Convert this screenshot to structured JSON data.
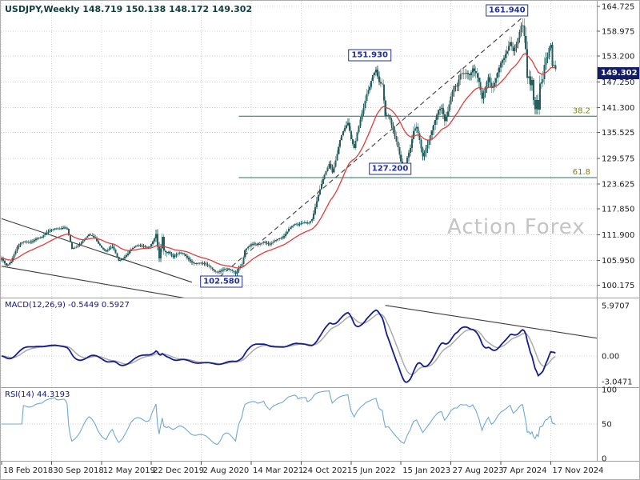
{
  "window": {
    "title_quote": "USDJPY,Weekly 148.719 150.138 148.172 149.302"
  },
  "watermark": "Action Forex",
  "colors": {
    "candle": "#265f5f",
    "ma": "#e03c3c",
    "macd_main": "#141e8c",
    "macd_signal": "#ababab",
    "rsi": "#6fa8d6",
    "grid": "#d4d4d4",
    "separator": "#9e9e9e",
    "axis_text": "#1c1c1c",
    "trendline": "#3c3c3c",
    "fib": "#2f6f63",
    "fib_label": "#808000",
    "callout": "#1e2f9e",
    "tag_bg": "#141c63",
    "title_text": "#0f3e3e",
    "watermark_text": "#c4c4c4"
  },
  "chart_data": {
    "type": "candlestick",
    "symbol": "USDJPY",
    "timeframe": "Weekly",
    "ohlc_current": {
      "open": 148.719,
      "high": 150.138,
      "low": 148.172,
      "close": 149.302
    },
    "main": {
      "price_axis_labels": [
        "164.725",
        "158.975",
        "153.200",
        "147.250",
        "141.300",
        "135.525",
        "129.575",
        "123.625",
        "117.850",
        "111.900",
        "105.950",
        "100.175"
      ],
      "ylim": [
        97.35,
        166.0
      ],
      "current_price": 149.302,
      "current_price_label": "149.302",
      "ma_indicator": {
        "type": "EMA",
        "period": 26
      },
      "price_path": [
        [
          0,
          106.3
        ],
        [
          3,
          105.2
        ],
        [
          6,
          106.1
        ],
        [
          10,
          108.6
        ],
        [
          14,
          110.0
        ],
        [
          18,
          110.6
        ],
        [
          22,
          111.2
        ],
        [
          26,
          110.8
        ],
        [
          31,
          113.0
        ],
        [
          34,
          113.9
        ],
        [
          38,
          113.3
        ],
        [
          42,
          112.7
        ],
        [
          45,
          108.6
        ],
        [
          48,
          109.6
        ],
        [
          52,
          110.5
        ],
        [
          56,
          111.4
        ],
        [
          60,
          111.0
        ],
        [
          63,
          109.9
        ],
        [
          67,
          108.1
        ],
        [
          71,
          108.6
        ],
        [
          75,
          105.9
        ],
        [
          79,
          107.3
        ],
        [
          83,
          108.4
        ],
        [
          87,
          108.9
        ],
        [
          91,
          109.4
        ],
        [
          95,
          109.6
        ],
        [
          99,
          111.3
        ],
        [
          100,
          108.1
        ],
        [
          101,
          105.4
        ],
        [
          102,
          107.8
        ],
        [
          103,
          110.7
        ],
        [
          104,
          107.9
        ],
        [
          107,
          108.4
        ],
        [
          110,
          107.2
        ],
        [
          114,
          107.4
        ],
        [
          118,
          106.7
        ],
        [
          122,
          105.9
        ],
        [
          126,
          105.5
        ],
        [
          130,
          104.7
        ],
        [
          134,
          104.2
        ],
        [
          138,
          103.7
        ],
        [
          142,
          103.8
        ],
        [
          146,
          103.4
        ],
        [
          150,
          103.1
        ],
        [
          152,
          104.7
        ],
        [
          154,
          105.6
        ],
        [
          156,
          108.5
        ],
        [
          158,
          108.8
        ],
        [
          160,
          109.1
        ],
        [
          164,
          109.6
        ],
        [
          168,
          110.8
        ],
        [
          172,
          109.5
        ],
        [
          176,
          110.2
        ],
        [
          180,
          111.5
        ],
        [
          184,
          113.7
        ],
        [
          188,
          114.0
        ],
        [
          190,
          113.6
        ],
        [
          192,
          114.2
        ],
        [
          196,
          115.3
        ],
        [
          199,
          116.2
        ],
        [
          202,
          119.3
        ],
        [
          205,
          122.6
        ],
        [
          208,
          126.4
        ],
        [
          210,
          128.9
        ],
        [
          212,
          127.3
        ],
        [
          214,
          129.8
        ],
        [
          217,
          133.3
        ],
        [
          220,
          135.5
        ],
        [
          222,
          137.2
        ],
        [
          224,
          134.3
        ],
        [
          226,
          132.9
        ],
        [
          228,
          136.6
        ],
        [
          230,
          138.9
        ],
        [
          232,
          140.6
        ],
        [
          234,
          143.3
        ],
        [
          236,
          145.2
        ],
        [
          238,
          148.7
        ],
        [
          240,
          151.0
        ],
        [
          242,
          148.4
        ],
        [
          244,
          147.4
        ],
        [
          246,
          139.1
        ],
        [
          248,
          138.6
        ],
        [
          250,
          136.2
        ],
        [
          252,
          134.3
        ],
        [
          254,
          132.6
        ],
        [
          256,
          129.8
        ],
        [
          258,
          127.9
        ],
        [
          260,
          129.9
        ],
        [
          262,
          131.3
        ],
        [
          264,
          134.8
        ],
        [
          266,
          136.1
        ],
        [
          268,
          133.9
        ],
        [
          270,
          130.9
        ],
        [
          272,
          132.9
        ],
        [
          274,
          134.3
        ],
        [
          276,
          135.7
        ],
        [
          278,
          137.4
        ],
        [
          280,
          139.6
        ],
        [
          282,
          140.9
        ],
        [
          284,
          138.8
        ],
        [
          286,
          141.5
        ],
        [
          288,
          144.8
        ],
        [
          290,
          146.2
        ],
        [
          292,
          145.4
        ],
        [
          294,
          147.9
        ],
        [
          296,
          148.4
        ],
        [
          298,
          149.6
        ],
        [
          300,
          149.9
        ],
        [
          302,
          151.5
        ],
        [
          304,
          149.7
        ],
        [
          306,
          146.7
        ],
        [
          308,
          142.2
        ],
        [
          310,
          144.9
        ],
        [
          312,
          148.2
        ],
        [
          314,
          146.6
        ],
        [
          316,
          148.2
        ],
        [
          318,
          150.3
        ],
        [
          320,
          151.5
        ],
        [
          322,
          151.8
        ],
        [
          324,
          153.2
        ],
        [
          326,
          155.9
        ],
        [
          328,
          154.8
        ],
        [
          330,
          157.2
        ],
        [
          332,
          159.9
        ],
        [
          333,
          161.0
        ],
        [
          334,
          160.8
        ],
        [
          335,
          157.5
        ],
        [
          336,
          153.7
        ],
        [
          337,
          146.5
        ],
        [
          338,
          146.6
        ],
        [
          339,
          144.7
        ],
        [
          340,
          146.2
        ],
        [
          341,
          142.3
        ],
        [
          342,
          140.9
        ],
        [
          343,
          143.8
        ],
        [
          344,
          142.2
        ],
        [
          345,
          148.7
        ],
        [
          346,
          149.1
        ],
        [
          347,
          149.5
        ],
        [
          348,
          152.3
        ],
        [
          349,
          153.0
        ],
        [
          350,
          152.6
        ],
        [
          351,
          154.3
        ],
        [
          352,
          154.7
        ],
        [
          353,
          149.8
        ],
        [
          354,
          150.0
        ],
        [
          355,
          149.3
        ]
      ],
      "trendlines": [
        {
          "name": "channel-upper-trendline",
          "points": [
            [
              0,
              115.6
            ],
            [
              122,
              100.9
            ]
          ],
          "style": "solid"
        },
        {
          "name": "channel-lower-trendline",
          "points": [
            [
              0,
              104.6
            ],
            [
              118,
              97.2
            ]
          ],
          "style": "solid"
        },
        {
          "name": "rally-dashed-trendline",
          "points": [
            [
              136,
              101.0
            ],
            [
              333,
              161.9
            ]
          ],
          "style": "dashed"
        }
      ],
      "fib_start_week": 152,
      "fib_levels": [
        {
          "label": "38.2",
          "price": 139.3
        },
        {
          "label": "61.8",
          "price": 125.1
        }
      ],
      "callouts": [
        {
          "text": "161.940",
          "week": 324,
          "price": 163.8
        },
        {
          "text": "151.930",
          "week": 236,
          "price": 153.5
        },
        {
          "text": "127.200",
          "week": 249,
          "price": 127.1
        },
        {
          "text": "102.580",
          "week": 141,
          "price": 101.1
        }
      ]
    },
    "x_axis": {
      "weeks_total": 356,
      "ticks": [
        {
          "label": "18 Feb 2018",
          "week": 0
        },
        {
          "label": "30 Sep 2018",
          "week": 32
        },
        {
          "label": "12 May 2019",
          "week": 64
        },
        {
          "label": "22 Dec 2019",
          "week": 96
        },
        {
          "label": "2 Aug 2020",
          "week": 128
        },
        {
          "label": "14 Mar 2021",
          "week": 160
        },
        {
          "label": "24 Oct 2021",
          "week": 192
        },
        {
          "label": "5 Jun 2022",
          "week": 224
        },
        {
          "label": "15 Jan 2023",
          "week": 256
        },
        {
          "label": "27 Aug 2023",
          "week": 288
        },
        {
          "label": "7 Apr 2024",
          "week": 320
        },
        {
          "label": "17 Nov 2024",
          "week": 352
        }
      ]
    },
    "macd": {
      "label": "MACD(12,26,9) -0.5449 0.5927",
      "params": [
        12,
        26,
        9
      ],
      "current_values": {
        "macd": -0.5449,
        "signal": 0.5927
      },
      "axis": [
        {
          "label": "5.9707",
          "v": 5.9707
        },
        {
          "label": "0.00",
          "v": 0
        },
        {
          "label": "-3.0471",
          "v": -3.0471
        }
      ],
      "trendline": {
        "name": "macd-descending-trendline",
        "points": [
          [
            246,
            6.0
          ],
          [
            382,
            2.1
          ]
        ]
      }
    },
    "rsi": {
      "label": "RSI(14) 44.3193",
      "period": 14,
      "current_value": 44.3193,
      "axis": [
        {
          "label": "100",
          "v": 100
        },
        {
          "label": "50",
          "v": 50
        },
        {
          "label": "0",
          "v": 0
        }
      ]
    }
  }
}
